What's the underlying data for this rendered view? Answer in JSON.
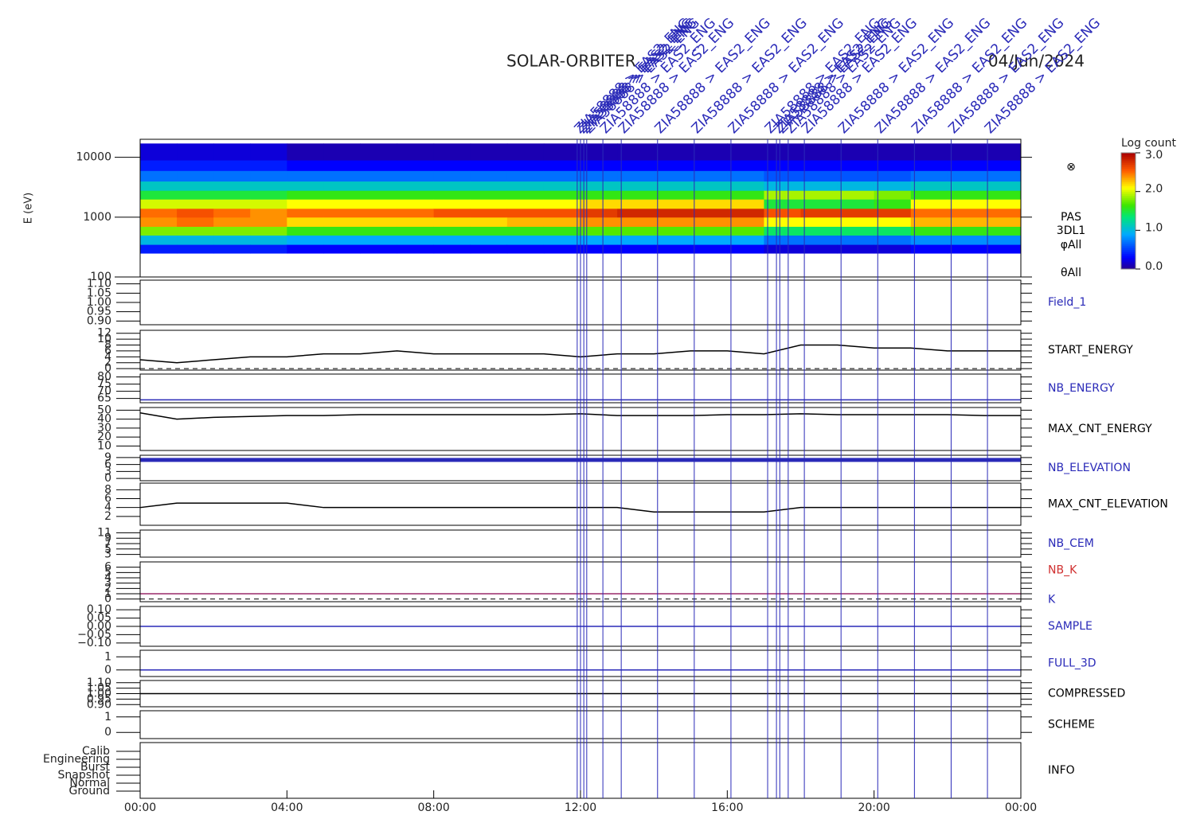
{
  "chart_data": {
    "type": "multi-panel",
    "title": "SOLAR-ORBITER",
    "date": "04/Jun/2024",
    "xlim": [
      0,
      24
    ],
    "xticks": [
      {
        "value": 0,
        "label": "00:00"
      },
      {
        "value": 4,
        "label": "04:00"
      },
      {
        "value": 8,
        "label": "08:00"
      },
      {
        "value": 12,
        "label": "12:00"
      },
      {
        "value": 16,
        "label": "16:00"
      },
      {
        "value": 20,
        "label": "20:00"
      },
      {
        "value": 24,
        "label": "00:00"
      }
    ],
    "series_x": [
      0,
      1,
      2,
      3,
      4,
      5,
      6,
      7,
      8,
      9,
      10,
      11,
      12,
      13,
      14,
      15,
      16,
      17,
      18,
      19,
      20,
      21,
      22,
      23,
      24
    ],
    "annotation_color": "#2a2ab8",
    "annotations": [
      {
        "x": 11.91,
        "label": "ZIA58888 > EAS2_ENG"
      },
      {
        "x": 12.0,
        "label": "ZIA58888 > EAS2_ENG"
      },
      {
        "x": 12.09,
        "label": "ZIA58888 > EAS2_ENG"
      },
      {
        "x": 12.17,
        "label": "ZIA58888 > EAS2_ENG"
      },
      {
        "x": 12.61,
        "label": "ZIA58888 > EAS2_ENG"
      },
      {
        "x": 13.11,
        "label": "ZIA58888 > EAS2_ENG"
      },
      {
        "x": 14.1,
        "label": "ZIA58888 > EAS2_ENG"
      },
      {
        "x": 15.1,
        "label": "ZIA58888 > EAS2_ENG"
      },
      {
        "x": 16.1,
        "label": "ZIA58888 > EAS2_ENG"
      },
      {
        "x": 17.1,
        "label": "ZIA58888 > EAS2_ENG"
      },
      {
        "x": 17.34,
        "label": "ZIA58888 > EAS2_ENG"
      },
      {
        "x": 17.43,
        "label": "ZIA58888 > EAS2_ENG"
      },
      {
        "x": 17.66,
        "label": "ZIA58888 > EAS2_ENG"
      },
      {
        "x": 18.1,
        "label": "ZIA58888 > EAS2_ENG"
      },
      {
        "x": 19.1,
        "label": "ZIA58888 > EAS2_ENG"
      },
      {
        "x": 20.1,
        "label": "ZIA58888 > EAS2_ENG"
      },
      {
        "x": 21.1,
        "label": "ZIA58888 > EAS2_ENG"
      },
      {
        "x": 22.1,
        "label": "ZIA58888 > EAS2_ENG"
      },
      {
        "x": 23.09,
        "label": "ZIA58888 > EAS2_ENG"
      }
    ],
    "panels": [
      {
        "type": "spectrogram",
        "ylabel": "E (eV)",
        "log": true,
        "ylim": [
          100,
          20000
        ],
        "yticks": [
          100,
          1000,
          10000
        ],
        "labels": [
          {
            "text": "⊗",
            "color": "#000000"
          },
          {
            "text": "PAS",
            "color": "#000000"
          },
          {
            "text": "3DL1",
            "color": "#000000"
          },
          {
            "text": "φAll",
            "color": "#000000"
          },
          {
            "text": "θAll",
            "color": "#000000"
          }
        ],
        "time_edges": [
          0,
          1,
          2,
          3,
          4,
          5,
          6,
          7,
          8,
          9,
          10,
          11,
          12,
          13,
          14,
          15,
          16,
          17,
          18,
          19,
          20,
          21,
          22,
          23,
          24
        ],
        "energy_edges": [
          250,
          350,
          500,
          700,
          1000,
          1400,
          2000,
          2800,
          4000,
          6000,
          9000,
          17000
        ],
        "z": [
          [
            0.4,
            1.0,
            1.8,
            2.4,
            2.5,
            2.0,
            1.5,
            1.1,
            0.7,
            0.4,
            0.2
          ],
          [
            0.4,
            1.0,
            1.8,
            2.5,
            2.6,
            2.0,
            1.5,
            1.1,
            0.7,
            0.4,
            0.2
          ],
          [
            0.4,
            1.0,
            1.8,
            2.4,
            2.5,
            2.0,
            1.5,
            1.1,
            0.7,
            0.4,
            0.2
          ],
          [
            0.4,
            1.0,
            1.8,
            2.4,
            2.4,
            2.0,
            1.5,
            1.1,
            0.7,
            0.4,
            0.2
          ],
          [
            0.3,
            0.9,
            1.6,
            2.2,
            2.5,
            2.1,
            1.6,
            1.1,
            0.7,
            0.3,
            0.1
          ],
          [
            0.3,
            0.9,
            1.6,
            2.2,
            2.5,
            2.1,
            1.6,
            1.1,
            0.7,
            0.3,
            0.1
          ],
          [
            0.3,
            0.9,
            1.6,
            2.2,
            2.5,
            2.1,
            1.6,
            1.1,
            0.7,
            0.3,
            0.1
          ],
          [
            0.3,
            0.9,
            1.6,
            2.2,
            2.5,
            2.1,
            1.6,
            1.1,
            0.7,
            0.3,
            0.1
          ],
          [
            0.3,
            0.9,
            1.6,
            2.2,
            2.6,
            2.1,
            1.6,
            1.1,
            0.7,
            0.3,
            0.1
          ],
          [
            0.3,
            0.9,
            1.6,
            2.2,
            2.6,
            2.1,
            1.6,
            1.1,
            0.7,
            0.3,
            0.1
          ],
          [
            0.3,
            0.9,
            1.6,
            2.3,
            2.6,
            2.1,
            1.6,
            1.1,
            0.7,
            0.3,
            0.1
          ],
          [
            0.3,
            0.9,
            1.6,
            2.3,
            2.6,
            2.1,
            1.6,
            1.1,
            0.7,
            0.3,
            0.1
          ],
          [
            0.3,
            0.9,
            1.7,
            2.4,
            2.7,
            2.2,
            1.6,
            1.1,
            0.7,
            0.3,
            0.1
          ],
          [
            0.3,
            0.9,
            1.7,
            2.4,
            2.8,
            2.2,
            1.6,
            1.1,
            0.7,
            0.3,
            0.1
          ],
          [
            0.3,
            0.9,
            1.7,
            2.4,
            2.8,
            2.2,
            1.6,
            1.1,
            0.7,
            0.3,
            0.1
          ],
          [
            0.3,
            0.9,
            1.7,
            2.4,
            2.8,
            2.2,
            1.6,
            1.1,
            0.7,
            0.3,
            0.1
          ],
          [
            0.3,
            0.9,
            1.7,
            2.4,
            2.8,
            2.2,
            1.6,
            1.1,
            0.7,
            0.3,
            0.1
          ],
          [
            0.2,
            0.7,
            1.4,
            2.1,
            2.6,
            1.5,
            1.9,
            1.0,
            0.6,
            0.3,
            0.1
          ],
          [
            0.2,
            0.7,
            1.4,
            2.1,
            2.7,
            1.5,
            1.9,
            1.0,
            0.6,
            0.3,
            0.1
          ],
          [
            0.2,
            0.7,
            1.4,
            2.1,
            2.7,
            1.5,
            1.9,
            1.0,
            0.6,
            0.3,
            0.1
          ],
          [
            0.2,
            0.7,
            1.4,
            2.1,
            2.7,
            1.6,
            1.8,
            1.0,
            0.6,
            0.3,
            0.1
          ],
          [
            0.3,
            0.8,
            1.6,
            2.3,
            2.5,
            2.1,
            1.6,
            1.1,
            0.7,
            0.3,
            0.1
          ],
          [
            0.3,
            0.8,
            1.6,
            2.3,
            2.5,
            2.1,
            1.6,
            1.1,
            0.7,
            0.3,
            0.1
          ],
          [
            0.3,
            0.8,
            1.6,
            2.3,
            2.5,
            2.1,
            1.6,
            1.1,
            0.7,
            0.3,
            0.1
          ]
        ],
        "colorbar": {
          "title": "Log count",
          "zlim": [
            0,
            3
          ],
          "ticks": [
            {
              "value": 0,
              "label": "0.0"
            },
            {
              "value": 1,
              "label": "1.0"
            },
            {
              "value": 2,
              "label": "2.0"
            },
            {
              "value": 3,
              "label": "3.0"
            }
          ]
        }
      },
      {
        "type": "line",
        "labels": [
          {
            "text": "Field_1",
            "color": "#2a2ab8"
          }
        ],
        "ylim": [
          0.88,
          1.12
        ],
        "yticks": [
          {
            "value": 0.9,
            "label": "0.90"
          },
          {
            "value": 0.95,
            "label": "0.95"
          },
          {
            "value": 1.0,
            "label": "1.00"
          },
          {
            "value": 1.05,
            "label": "1.05"
          },
          {
            "value": 1.1,
            "label": "1.10"
          }
        ]
      },
      {
        "type": "line",
        "labels": [
          {
            "text": "START_ENERGY",
            "color": "#000000"
          }
        ],
        "ylim": [
          -0.5,
          13
        ],
        "yticks": [
          0,
          2,
          4,
          6,
          8,
          10,
          12
        ],
        "dashed_line": 0,
        "series": [
          {
            "color": "#000000",
            "values": [
              3,
              2,
              3,
              4,
              4,
              5,
              5,
              6,
              5,
              5,
              5,
              5,
              4,
              5,
              5,
              6,
              6,
              5,
              8,
              8,
              7,
              7,
              6,
              6,
              6
            ]
          }
        ]
      },
      {
        "type": "line",
        "labels": [
          {
            "text": "NB_ENERGY",
            "color": "#2a2ab8"
          }
        ],
        "ylim": [
          62,
          82
        ],
        "yticks": [
          65,
          70,
          75,
          80
        ],
        "hline": {
          "value": 64,
          "color": "#2a2ab8"
        }
      },
      {
        "type": "line",
        "labels": [
          {
            "text": "MAX_CNT_ENERGY",
            "color": "#000000"
          }
        ],
        "ylim": [
          5,
          53
        ],
        "yticks": [
          10,
          20,
          30,
          40,
          50
        ],
        "series": [
          {
            "color": "#000000",
            "values": [
              47,
              40,
              42,
              43,
              44,
              44,
              45,
              45,
              45,
              45,
              45,
              45,
              46,
              44,
              44,
              44,
              45,
              45,
              46,
              45,
              45,
              45,
              45,
              44,
              44
            ]
          }
        ]
      },
      {
        "type": "line",
        "labels": [
          {
            "text": "NB_ELEVATION",
            "color": "#2a2ab8"
          }
        ],
        "ylim": [
          -1,
          10
        ],
        "yticks": [
          0,
          3,
          6,
          9
        ],
        "hline": {
          "value": 8,
          "color": "#2a2ab8"
        }
      },
      {
        "type": "line",
        "labels": [
          {
            "text": "MAX_CNT_ELEVATION",
            "color": "#000000"
          }
        ],
        "ylim": [
          0,
          9.5
        ],
        "yticks": [
          2,
          4,
          6,
          8
        ],
        "series": [
          {
            "color": "#000000",
            "values": [
              4,
              5,
              5,
              5,
              5,
              4,
              4,
              4,
              4,
              4,
              4,
              4,
              4,
              4,
              3,
              3,
              3,
              3,
              4,
              4,
              4,
              4,
              4,
              4,
              4
            ]
          }
        ]
      },
      {
        "type": "line",
        "labels": [
          {
            "text": "NB_CEM",
            "color": "#2a2ab8"
          }
        ],
        "ylim": [
          2,
          12
        ],
        "yticks": [
          3,
          5,
          7,
          9,
          11
        ]
      },
      {
        "type": "line",
        "labels": [
          {
            "text": "NB_K",
            "color": "#d03030"
          },
          {
            "text": "K",
            "color": "#2a2ab8"
          }
        ],
        "ylim": [
          -0.5,
          7
        ],
        "yticks": [
          0,
          1,
          2,
          3,
          4,
          5,
          6
        ],
        "dashed_line": 0,
        "hline": {
          "value": 1,
          "color": "#9a2a6a"
        }
      },
      {
        "type": "line",
        "labels": [
          {
            "text": "SAMPLE",
            "color": "#2a2ab8"
          }
        ],
        "ylim": [
          -0.12,
          0.12
        ],
        "yticks": [
          {
            "value": -0.1,
            "label": "−0.10"
          },
          {
            "value": -0.05,
            "label": "−0.05"
          },
          {
            "value": 0,
            "label": "0.00"
          },
          {
            "value": 0.05,
            "label": "0.05"
          },
          {
            "value": 0.1,
            "label": "0.10"
          }
        ],
        "hline": {
          "value": 0,
          "color": "#2a2ab8"
        }
      },
      {
        "type": "line",
        "labels": [
          {
            "text": "FULL_3D",
            "color": "#2a2ab8"
          }
        ],
        "ylim": [
          -0.5,
          1.5
        ],
        "yticks": [
          0,
          1
        ],
        "hline": {
          "value": 0,
          "color": "#2a2ab8"
        }
      },
      {
        "type": "line",
        "labels": [
          {
            "text": "COMPRESSED",
            "color": "#000000"
          }
        ],
        "ylim": [
          0.88,
          1.12
        ],
        "yticks": [
          {
            "value": 0.9,
            "label": "0.90"
          },
          {
            "value": 0.95,
            "label": "0.95"
          },
          {
            "value": 1.0,
            "label": "1.00"
          },
          {
            "value": 1.05,
            "label": "1.05"
          },
          {
            "value": 1.1,
            "label": "1.10"
          }
        ],
        "hline": {
          "value": 1,
          "color": "#000000"
        }
      },
      {
        "type": "line",
        "labels": [
          {
            "text": "SCHEME",
            "color": "#000000"
          }
        ],
        "ylim": [
          -0.4,
          1.4
        ],
        "yticks": [
          0,
          1
        ]
      },
      {
        "type": "category",
        "labels": [
          {
            "text": "INFO",
            "color": "#000000"
          }
        ],
        "ycategories": [
          "Calib",
          "Engineering",
          "Burst",
          "Snapshot",
          "Normal",
          "Ground"
        ]
      }
    ]
  }
}
